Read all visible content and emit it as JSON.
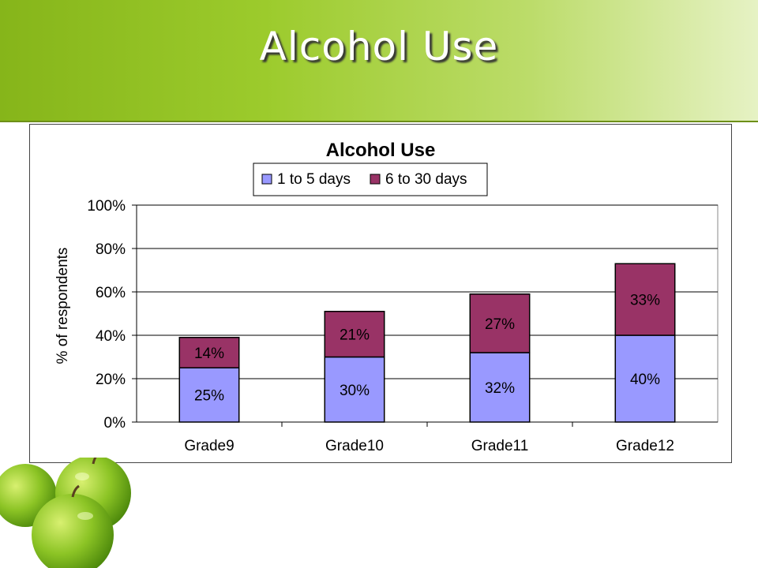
{
  "slide": {
    "title": "Alcohol Use"
  },
  "chart_data": {
    "type": "bar",
    "stacked": true,
    "title": "Alcohol Use",
    "xlabel": "",
    "ylabel": "% of respondents",
    "categories": [
      "Grade9",
      "Grade10",
      "Grade11",
      "Grade12"
    ],
    "series": [
      {
        "name": "1 to 5 days",
        "values": [
          25,
          30,
          32,
          40
        ],
        "labels": [
          "25%",
          "30%",
          "32%",
          "40%"
        ],
        "color": "#9999ff"
      },
      {
        "name": "6 to 30 days",
        "values": [
          14,
          21,
          27,
          33
        ],
        "labels": [
          "14%",
          "21%",
          "27%",
          "33%"
        ],
        "color": "#993366"
      }
    ],
    "ylim": [
      0,
      100
    ],
    "yticks": [
      "0%",
      "20%",
      "40%",
      "60%",
      "80%",
      "100%"
    ],
    "grid": true,
    "legend": "top"
  },
  "decoration": {
    "image": "green-apples"
  }
}
